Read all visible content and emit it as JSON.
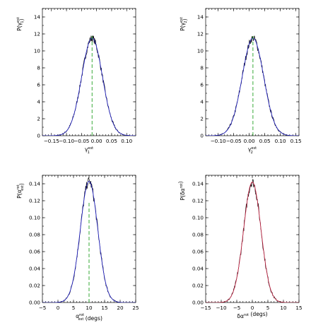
{
  "chart_data": [
    {
      "type": "line",
      "xlim": [
        -0.18,
        0.13
      ],
      "ylim": [
        0,
        15
      ],
      "xticks": [
        -0.15,
        -0.1,
        -0.05,
        0.0,
        0.05,
        0.1
      ],
      "xtick_labels": [
        "−0.15",
        "−0.10",
        "−0.05",
        "0.00",
        "0.05",
        "0.10"
      ],
      "yticks": [
        0,
        2,
        4,
        6,
        8,
        10,
        12,
        14
      ],
      "ytick_labels": [
        "0",
        "2",
        "4",
        "6",
        "8",
        "10",
        "12",
        "14"
      ],
      "xlabel": {
        "base": "γ",
        "sub": "1",
        "sup": "est"
      },
      "ylabel": {
        "pre": "P(",
        "base": "γ",
        "sub": "1",
        "sup": "est",
        "post": ")"
      },
      "distribution": {
        "mean": -0.015,
        "sigma": 0.0345,
        "peak": 11.5
      },
      "vline": {
        "x": -0.015,
        "color": "#22a022"
      },
      "series_colors": {
        "histogram": "#000000",
        "fit": "#2222cc"
      }
    },
    {
      "type": "line",
      "xlim": [
        -0.14,
        0.16
      ],
      "ylim": [
        0,
        15
      ],
      "xticks": [
        -0.1,
        -0.05,
        0.0,
        0.05,
        0.1,
        0.15
      ],
      "xtick_labels": [
        "−0.10",
        "−0.05",
        "0.00",
        "0.05",
        "0.10",
        "0.15"
      ],
      "yticks": [
        0,
        2,
        4,
        6,
        8,
        10,
        12,
        14
      ],
      "ytick_labels": [
        "0",
        "2",
        "4",
        "6",
        "8",
        "10",
        "12",
        "14"
      ],
      "xlabel": {
        "base": "γ",
        "sub": "2",
        "sup": "est"
      },
      "ylabel": {
        "pre": "P(",
        "base": "γ",
        "sub": "2",
        "sup": "est",
        "post": ")"
      },
      "distribution": {
        "mean": 0.012,
        "sigma": 0.0345,
        "peak": 11.5
      },
      "vline": {
        "x": 0.012,
        "color": "#22a022"
      },
      "series_colors": {
        "histogram": "#000000",
        "fit": "#2222cc"
      }
    },
    {
      "type": "line",
      "xlim": [
        -5,
        25
      ],
      "ylim": [
        0,
        0.15
      ],
      "xticks": [
        -5,
        0,
        5,
        10,
        15,
        20,
        25
      ],
      "xtick_labels": [
        "−5",
        "0",
        "5",
        "10",
        "15",
        "20",
        "25"
      ],
      "yticks": [
        0,
        0.02,
        0.04,
        0.06,
        0.08,
        0.1,
        0.12,
        0.14
      ],
      "ytick_labels": [
        "0.00",
        "0.02",
        "0.04",
        "0.06",
        "0.08",
        "0.10",
        "0.12",
        "0.14"
      ],
      "xlabel": {
        "base": "α",
        "sub": "est",
        "sup": "rot",
        "post": " (degs)"
      },
      "ylabel": {
        "pre": "P(",
        "base": "α",
        "sub": "est",
        "sup": "rot",
        "post": ")"
      },
      "distribution": {
        "mean": 10,
        "sigma": 2.8,
        "peak": 0.143
      },
      "vline": {
        "x": 10,
        "color": "#22a022"
      },
      "series_colors": {
        "histogram": "#000000",
        "fit": "#2222cc"
      }
    },
    {
      "type": "line",
      "xlim": [
        -15,
        15
      ],
      "ylim": [
        0,
        0.15
      ],
      "xticks": [
        -15,
        -10,
        -5,
        0,
        5,
        10,
        15
      ],
      "xtick_labels": [
        "−15",
        "−10",
        "−5",
        "0",
        "5",
        "10",
        "15"
      ],
      "yticks": [
        0,
        0.02,
        0.04,
        0.06,
        0.08,
        0.1,
        0.12,
        0.14
      ],
      "ytick_labels": [
        "0.00",
        "0.02",
        "0.04",
        "0.06",
        "0.08",
        "0.10",
        "0.12",
        "0.14"
      ],
      "xlabel": {
        "base": "δα",
        "sub": "",
        "sup": "rot",
        "post": " (degs)"
      },
      "ylabel": {
        "pre": "P(",
        "base": "δα",
        "sub": "",
        "sup": "rot",
        "post": ")"
      },
      "distribution": {
        "mean": 0,
        "sigma": 2.8,
        "peak": 0.142
      },
      "vline": null,
      "series_colors": {
        "histogram": "#000000",
        "fit": "#cc2244"
      }
    }
  ]
}
